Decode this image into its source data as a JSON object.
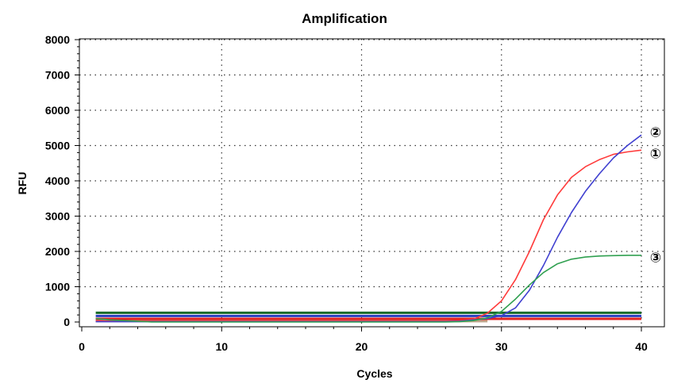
{
  "chart_data": {
    "type": "line",
    "title": "Amplification",
    "xlabel": "Cycles",
    "ylabel": "RFU",
    "xlim": [
      0,
      40
    ],
    "ylim": [
      0,
      8000
    ],
    "x_ticks": [
      0,
      10,
      20,
      30,
      40
    ],
    "y_ticks": [
      0,
      1000,
      2000,
      3000,
      4000,
      5000,
      6000,
      7000,
      8000
    ],
    "grid": true,
    "series": [
      {
        "color": "#ff3b3b",
        "x": [
          1,
          2,
          3,
          4,
          5,
          6,
          7,
          8,
          9,
          10,
          11,
          12,
          13,
          14,
          15,
          16,
          17,
          18,
          19,
          20,
          21,
          22,
          23,
          24,
          25,
          26,
          27,
          28,
          29,
          30,
          31,
          32,
          33,
          34,
          35,
          36,
          37,
          38,
          39,
          40
        ],
        "y": [
          30,
          30,
          30,
          30,
          30,
          30,
          30,
          30,
          30,
          30,
          30,
          30,
          30,
          30,
          30,
          30,
          30,
          30,
          30,
          30,
          30,
          30,
          30,
          30,
          30,
          30,
          40,
          80,
          250,
          600,
          1200,
          2000,
          2900,
          3600,
          4100,
          4400,
          4600,
          4750,
          4820,
          4870
        ]
      },
      {
        "color": "#4040d0",
        "x": [
          1,
          2,
          3,
          4,
          5,
          6,
          7,
          8,
          9,
          10,
          11,
          12,
          13,
          14,
          15,
          16,
          17,
          18,
          19,
          20,
          21,
          22,
          23,
          24,
          25,
          26,
          27,
          28,
          29,
          30,
          31,
          32,
          33,
          34,
          35,
          36,
          37,
          38,
          39,
          40
        ],
        "y": [
          10,
          10,
          10,
          10,
          10,
          10,
          10,
          10,
          10,
          10,
          10,
          10,
          10,
          10,
          10,
          10,
          10,
          10,
          10,
          10,
          10,
          10,
          10,
          10,
          10,
          10,
          20,
          60,
          100,
          180,
          400,
          900,
          1600,
          2400,
          3100,
          3700,
          4200,
          4650,
          5000,
          5300
        ]
      },
      {
        "color": "#30a050",
        "x": [
          1,
          2,
          3,
          4,
          5,
          6,
          7,
          8,
          9,
          10,
          11,
          12,
          13,
          14,
          15,
          16,
          17,
          18,
          19,
          20,
          21,
          22,
          23,
          24,
          25,
          26,
          27,
          28,
          29,
          30,
          31,
          32,
          33,
          34,
          35,
          36,
          37,
          38,
          39,
          40
        ],
        "y": [
          100,
          60,
          40,
          20,
          0,
          0,
          0,
          0,
          0,
          0,
          0,
          0,
          0,
          0,
          0,
          0,
          0,
          0,
          0,
          0,
          0,
          0,
          0,
          0,
          0,
          0,
          10,
          40,
          120,
          300,
          650,
          1050,
          1400,
          1650,
          1780,
          1840,
          1870,
          1880,
          1890,
          1890
        ]
      }
    ],
    "threshold_lines": [
      {
        "color": "#1a6b2a",
        "y": 260
      },
      {
        "color": "#2a3fbf",
        "y": 170
      },
      {
        "color": "#e02020",
        "y": 90
      }
    ],
    "baseline_band_color": "#8a5a2a",
    "annotations": [
      {
        "text": "②",
        "x": 40,
        "y": 5400
      },
      {
        "text": "①",
        "x": 40,
        "y": 4800
      },
      {
        "text": "③",
        "x": 40,
        "y": 1850
      }
    ]
  }
}
